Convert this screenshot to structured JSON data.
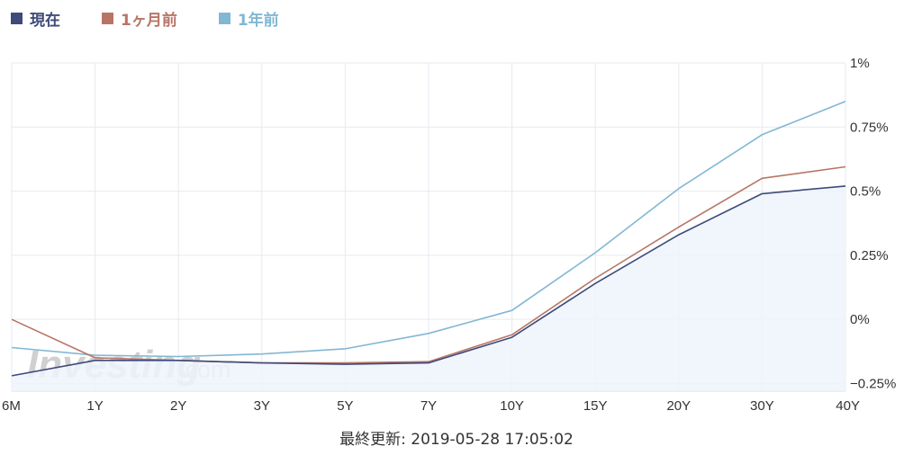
{
  "legend": {
    "items": [
      {
        "label": "現在",
        "color": "#3e4a7a"
      },
      {
        "label": "1ヶ月前",
        "color": "#b87565"
      },
      {
        "label": "1年前",
        "color": "#82b7d3"
      }
    ]
  },
  "watermark": {
    "brand": "Investing",
    "suffix": ".com"
  },
  "footer": {
    "text": "最終更新: 2019-05-28 17:05:02"
  },
  "chart_data": {
    "type": "line",
    "categories": [
      "6M",
      "1Y",
      "2Y",
      "3Y",
      "5Y",
      "7Y",
      "10Y",
      "15Y",
      "20Y",
      "30Y",
      "40Y"
    ],
    "y_ticks": [
      {
        "value": 1,
        "label": "1%"
      },
      {
        "value": 0.75,
        "label": "0.75%"
      },
      {
        "value": 0.5,
        "label": "0.5%"
      },
      {
        "value": 0.25,
        "label": "0.25%"
      },
      {
        "value": 0,
        "label": "0%"
      },
      {
        "value": -0.25,
        "label": "−0.25%"
      }
    ],
    "ylim": [
      -0.28,
      1.0
    ],
    "grid": true,
    "series": [
      {
        "name": "現在",
        "color": "#3e4a7a",
        "area": true,
        "values": [
          -0.22,
          -0.16,
          -0.16,
          -0.17,
          -0.175,
          -0.17,
          -0.07,
          0.14,
          0.33,
          0.49,
          0.52
        ]
      },
      {
        "name": "1ヶ月前",
        "color": "#b87565",
        "area": false,
        "values": [
          0.0,
          -0.15,
          -0.16,
          -0.17,
          -0.17,
          -0.165,
          -0.06,
          0.16,
          0.36,
          0.55,
          0.595
        ]
      },
      {
        "name": "1年前",
        "color": "#82b7d3",
        "area": false,
        "values": [
          -0.11,
          -0.14,
          -0.145,
          -0.135,
          -0.115,
          -0.055,
          0.035,
          0.26,
          0.51,
          0.72,
          0.85
        ]
      }
    ]
  }
}
